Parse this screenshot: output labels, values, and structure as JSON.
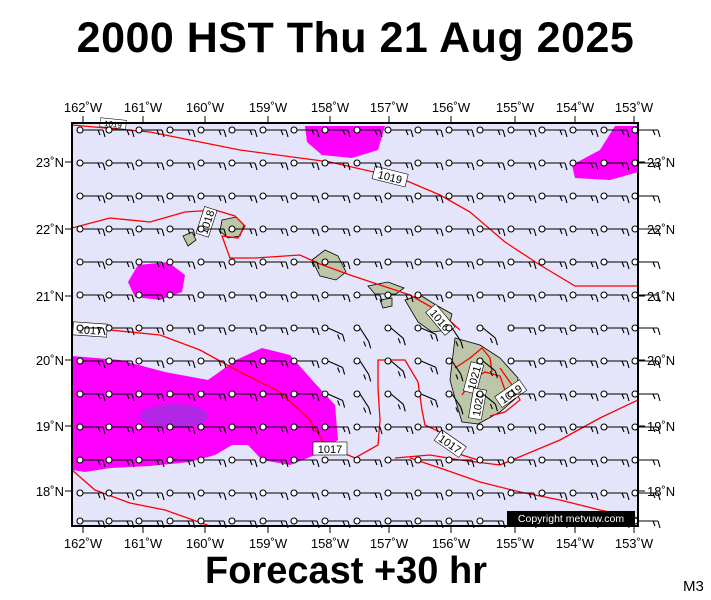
{
  "header": {
    "title": "2000 HST Thu 21 Aug 2025"
  },
  "footer": {
    "forecast": "Forecast +30 hr",
    "model": "M3",
    "copyright": "Copyright metvuw.com"
  },
  "axes": {
    "lon_labels": [
      "162˚W",
      "161˚W",
      "160˚W",
      "159˚W",
      "158˚W",
      "157˚W",
      "156˚W",
      "155˚W",
      "154˚W",
      "153˚W"
    ],
    "lat_labels": [
      "23˚N",
      "22˚N",
      "21˚N",
      "20˚N",
      "19˚N",
      "18˚N"
    ]
  },
  "isobars": {
    "labels": [
      "1019",
      "1018",
      "1017",
      "1016",
      "1021",
      "1020",
      "1019",
      "1017",
      "1017",
      "1019"
    ]
  },
  "colors": {
    "ocean": "#e4e4fa",
    "precip": "#ff00ff",
    "heavy_precip": "#9933dd",
    "isobar": "#ff0000",
    "land": "#bcc6a8"
  }
}
